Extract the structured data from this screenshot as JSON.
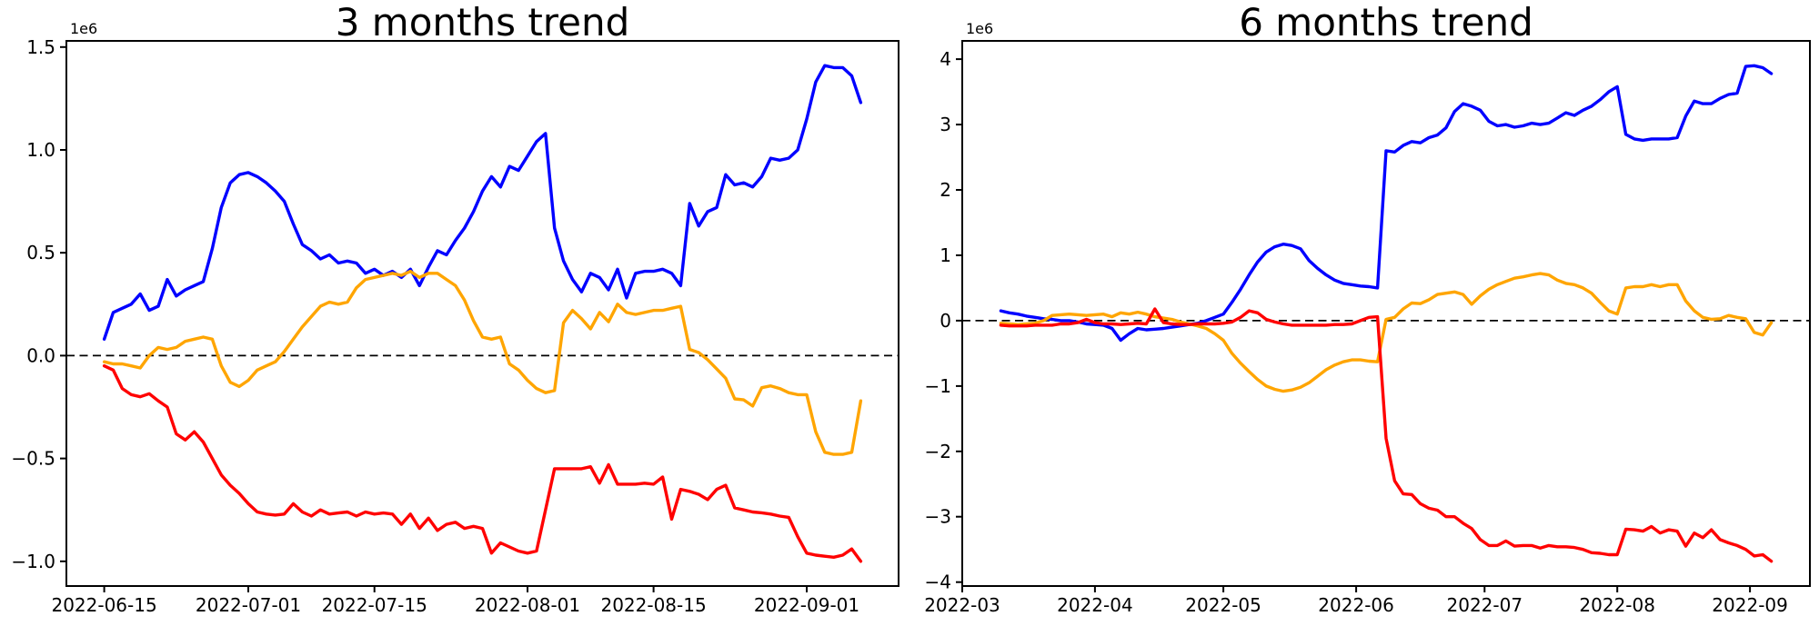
{
  "figure": {
    "background": "#ffffff",
    "grid": false,
    "legend": "none"
  },
  "chart_data": [
    {
      "type": "line",
      "title": "3 months trend",
      "offset_label": "1e6",
      "xlabel": "",
      "ylabel": "",
      "x_unit": "date",
      "x_span_days": 84,
      "x_margin_days": 4.2,
      "ylim": [
        -1.12,
        1.53
      ],
      "zero_line": true,
      "x_ticks": [
        {
          "label": "2022-06-15",
          "day": 0
        },
        {
          "label": "2022-07-01",
          "day": 16
        },
        {
          "label": "2022-07-15",
          "day": 30
        },
        {
          "label": "2022-08-01",
          "day": 47
        },
        {
          "label": "2022-08-15",
          "day": 61
        },
        {
          "label": "2022-09-01",
          "day": 78
        }
      ],
      "y_ticks": [
        {
          "label": "1.5",
          "value": 1.5
        },
        {
          "label": "1.0",
          "value": 1.0
        },
        {
          "label": "0.5",
          "value": 0.5
        },
        {
          "label": "0.0",
          "value": 0.0
        },
        {
          "label": "−0.5",
          "value": -0.5
        },
        {
          "label": "−1.0",
          "value": -1.0
        }
      ],
      "series": [
        {
          "name": "blue",
          "color": "#0000ff",
          "values": [
            0.08,
            0.21,
            0.23,
            0.25,
            0.3,
            0.22,
            0.24,
            0.37,
            0.29,
            0.32,
            0.34,
            0.36,
            0.52,
            0.72,
            0.84,
            0.88,
            0.89,
            0.87,
            0.84,
            0.8,
            0.75,
            0.64,
            0.54,
            0.51,
            0.47,
            0.49,
            0.45,
            0.46,
            0.45,
            0.4,
            0.42,
            0.39,
            0.41,
            0.38,
            0.42,
            0.34,
            0.43,
            0.51,
            0.49,
            0.56,
            0.62,
            0.7,
            0.8,
            0.87,
            0.82,
            0.92,
            0.9,
            0.97,
            1.04,
            1.08,
            0.62,
            0.46,
            0.37,
            0.31,
            0.4,
            0.38,
            0.32,
            0.42,
            0.28,
            0.4,
            0.41,
            0.41,
            0.42,
            0.4,
            0.34,
            0.74,
            0.63,
            0.7,
            0.72,
            0.88,
            0.83,
            0.84,
            0.82,
            0.87,
            0.96,
            0.95,
            0.96,
            1.0,
            1.15,
            1.33,
            1.41,
            1.4,
            1.4,
            1.36,
            1.23
          ]
        },
        {
          "name": "orange",
          "color": "#ffa500",
          "values": [
            -0.03,
            -0.04,
            -0.04,
            -0.05,
            -0.06,
            0.0,
            0.04,
            0.03,
            0.04,
            0.07,
            0.08,
            0.09,
            0.08,
            -0.05,
            -0.13,
            -0.15,
            -0.12,
            -0.07,
            -0.05,
            -0.03,
            0.02,
            0.08,
            0.14,
            0.19,
            0.24,
            0.26,
            0.25,
            0.26,
            0.33,
            0.37,
            0.38,
            0.39,
            0.4,
            0.39,
            0.41,
            0.38,
            0.4,
            0.4,
            0.37,
            0.34,
            0.27,
            0.17,
            0.09,
            0.08,
            0.09,
            -0.04,
            -0.07,
            -0.12,
            -0.16,
            -0.18,
            -0.17,
            0.16,
            0.22,
            0.18,
            0.13,
            0.21,
            0.165,
            0.25,
            0.21,
            0.2,
            0.21,
            0.22,
            0.22,
            0.23,
            0.24,
            0.03,
            0.015,
            -0.02,
            -0.065,
            -0.11,
            -0.21,
            -0.215,
            -0.245,
            -0.156,
            -0.147,
            -0.16,
            -0.18,
            -0.19,
            -0.19,
            -0.37,
            -0.47,
            -0.48,
            -0.48,
            -0.47,
            -0.22
          ]
        },
        {
          "name": "red",
          "color": "#ff0000",
          "values": [
            -0.05,
            -0.07,
            -0.16,
            -0.19,
            -0.2,
            -0.185,
            -0.22,
            -0.25,
            -0.38,
            -0.41,
            -0.37,
            -0.42,
            -0.5,
            -0.58,
            -0.63,
            -0.67,
            -0.72,
            -0.76,
            -0.77,
            -0.775,
            -0.77,
            -0.72,
            -0.76,
            -0.78,
            -0.75,
            -0.77,
            -0.765,
            -0.76,
            -0.78,
            -0.76,
            -0.77,
            -0.765,
            -0.77,
            -0.82,
            -0.77,
            -0.84,
            -0.79,
            -0.85,
            -0.82,
            -0.81,
            -0.84,
            -0.83,
            -0.84,
            -0.96,
            -0.91,
            -0.93,
            -0.95,
            -0.96,
            -0.95,
            -0.75,
            -0.55,
            -0.55,
            -0.55,
            -0.55,
            -0.54,
            -0.62,
            -0.53,
            -0.625,
            -0.625,
            -0.625,
            -0.62,
            -0.625,
            -0.59,
            -0.795,
            -0.65,
            -0.66,
            -0.674,
            -0.7,
            -0.65,
            -0.63,
            -0.74,
            -0.75,
            -0.76,
            -0.764,
            -0.77,
            -0.78,
            -0.786,
            -0.88,
            -0.96,
            -0.97,
            -0.975,
            -0.98,
            -0.97,
            -0.94,
            -1.0
          ]
        }
      ]
    },
    {
      "type": "line",
      "title": "6 months trend",
      "offset_label": "1e6",
      "xlabel": "",
      "ylabel": "",
      "x_unit": "date",
      "x_span_days": 180,
      "x_margin_days": 9.0,
      "ylim": [
        -4.06,
        4.28
      ],
      "zero_line": true,
      "x_ticks": [
        {
          "label": "2022-03",
          "day": -9
        },
        {
          "label": "2022-04",
          "day": 22
        },
        {
          "label": "2022-05",
          "day": 52
        },
        {
          "label": "2022-06",
          "day": 83
        },
        {
          "label": "2022-07",
          "day": 113
        },
        {
          "label": "2022-08",
          "day": 144
        },
        {
          "label": "2022-09",
          "day": 175
        }
      ],
      "y_ticks": [
        {
          "label": "4",
          "value": 4
        },
        {
          "label": "3",
          "value": 3
        },
        {
          "label": "2",
          "value": 2
        },
        {
          "label": "1",
          "value": 1
        },
        {
          "label": "0",
          "value": 0
        },
        {
          "label": "−1",
          "value": -1
        },
        {
          "label": "−2",
          "value": -2
        },
        {
          "label": "−3",
          "value": -3
        },
        {
          "label": "−4",
          "value": -4
        }
      ],
      "series": [
        {
          "name": "blue",
          "color": "#0000ff",
          "values": [
            0.15,
            0.12,
            0.1,
            0.07,
            0.05,
            0.03,
            0.02,
            0.0,
            0.0,
            -0.02,
            -0.05,
            -0.06,
            -0.07,
            -0.12,
            -0.3,
            -0.2,
            -0.12,
            -0.14,
            -0.13,
            -0.12,
            -0.1,
            -0.08,
            -0.06,
            -0.04,
            0.0,
            0.05,
            0.1,
            0.28,
            0.48,
            0.7,
            0.9,
            1.05,
            1.13,
            1.17,
            1.15,
            1.1,
            0.92,
            0.8,
            0.7,
            0.62,
            0.57,
            0.55,
            0.53,
            0.52,
            0.5,
            2.6,
            2.58,
            2.68,
            2.74,
            2.72,
            2.8,
            2.84,
            2.95,
            3.2,
            3.32,
            3.28,
            3.22,
            3.05,
            2.98,
            3.0,
            2.96,
            2.98,
            3.02,
            3.0,
            3.02,
            3.1,
            3.18,
            3.14,
            3.22,
            3.28,
            3.38,
            3.5,
            3.58,
            2.85,
            2.78,
            2.76,
            2.78,
            2.78,
            2.78,
            2.8,
            3.13,
            3.36,
            3.32,
            3.32,
            3.4,
            3.46,
            3.48,
            3.89,
            3.9,
            3.87,
            3.78
          ]
        },
        {
          "name": "orange",
          "color": "#ffa500",
          "values": [
            -0.04,
            -0.05,
            -0.06,
            -0.05,
            -0.04,
            0.0,
            0.08,
            0.09,
            0.1,
            0.09,
            0.08,
            0.09,
            0.1,
            0.06,
            0.12,
            0.1,
            0.13,
            0.1,
            0.06,
            0.04,
            0.02,
            -0.02,
            -0.05,
            -0.08,
            -0.12,
            -0.2,
            -0.3,
            -0.5,
            -0.65,
            -0.78,
            -0.9,
            -1.0,
            -1.05,
            -1.08,
            -1.06,
            -1.02,
            -0.95,
            -0.85,
            -0.75,
            -0.68,
            -0.63,
            -0.6,
            -0.6,
            -0.62,
            -0.63,
            0.02,
            0.05,
            0.18,
            0.27,
            0.26,
            0.32,
            0.4,
            0.42,
            0.44,
            0.4,
            0.25,
            0.38,
            0.48,
            0.55,
            0.6,
            0.65,
            0.67,
            0.7,
            0.72,
            0.7,
            0.62,
            0.57,
            0.55,
            0.5,
            0.42,
            0.28,
            0.15,
            0.1,
            0.5,
            0.52,
            0.52,
            0.55,
            0.52,
            0.55,
            0.55,
            0.3,
            0.15,
            0.05,
            0.02,
            0.03,
            0.08,
            0.05,
            0.03,
            -0.18,
            -0.22,
            -0.03
          ]
        },
        {
          "name": "red",
          "color": "#ff0000",
          "values": [
            -0.07,
            -0.08,
            -0.08,
            -0.08,
            -0.07,
            -0.07,
            -0.07,
            -0.05,
            -0.05,
            -0.03,
            0.02,
            -0.03,
            -0.05,
            -0.05,
            -0.06,
            -0.05,
            -0.04,
            -0.05,
            0.18,
            -0.03,
            -0.05,
            -0.06,
            -0.06,
            -0.05,
            -0.05,
            -0.05,
            -0.04,
            -0.02,
            0.05,
            0.15,
            0.12,
            0.02,
            -0.02,
            -0.05,
            -0.07,
            -0.07,
            -0.07,
            -0.07,
            -0.07,
            -0.06,
            -0.06,
            -0.05,
            0.0,
            0.05,
            0.06,
            -1.8,
            -2.45,
            -2.65,
            -2.66,
            -2.8,
            -2.87,
            -2.9,
            -3.0,
            -3.0,
            -3.1,
            -3.18,
            -3.35,
            -3.44,
            -3.44,
            -3.37,
            -3.45,
            -3.44,
            -3.44,
            -3.48,
            -3.44,
            -3.46,
            -3.46,
            -3.47,
            -3.5,
            -3.55,
            -3.56,
            -3.58,
            -3.58,
            -3.19,
            -3.2,
            -3.22,
            -3.15,
            -3.25,
            -3.2,
            -3.22,
            -3.45,
            -3.25,
            -3.32,
            -3.2,
            -3.35,
            -3.4,
            -3.44,
            -3.5,
            -3.6,
            -3.58,
            -3.68
          ]
        }
      ]
    }
  ]
}
